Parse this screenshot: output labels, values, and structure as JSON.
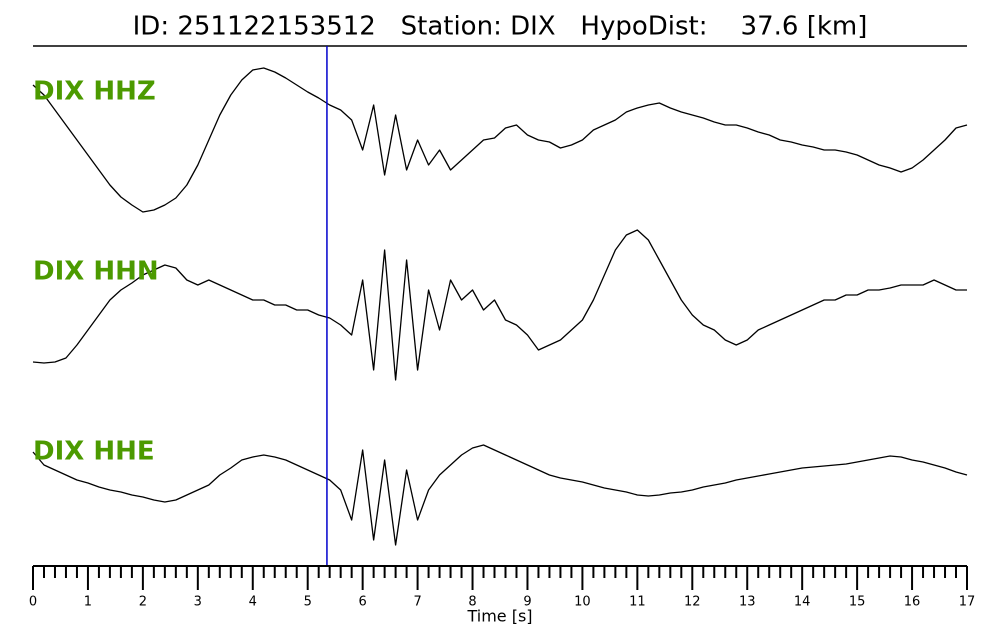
{
  "chart_data": {
    "type": "seismogram",
    "title": "ID: 251122153512   Station: DIX   HypoDist:    37.6 [km]",
    "xlabel": "Time [s]",
    "xlim": [
      0,
      17
    ],
    "xticks": [
      0,
      1,
      2,
      3,
      4,
      5,
      6,
      7,
      8,
      9,
      10,
      11,
      12,
      13,
      14,
      15,
      16,
      17
    ],
    "xminorticks": [
      0.2,
      0.4,
      0.6,
      0.8,
      1.2,
      1.4,
      1.6,
      1.8,
      2.2,
      2.4,
      2.6,
      2.8,
      3.2,
      3.4,
      3.6,
      3.8,
      4.2,
      4.4,
      4.6,
      4.8,
      5.2,
      5.4,
      5.6,
      5.8,
      6.2,
      6.4,
      6.6,
      6.8,
      7.2,
      7.4,
      7.6,
      7.8,
      8.2,
      8.4,
      8.6,
      8.8,
      9.2,
      9.4,
      9.6,
      9.8,
      10.2,
      10.4,
      10.6,
      10.8,
      11.2,
      11.4,
      11.6,
      11.8,
      12.2,
      12.4,
      12.6,
      12.8,
      13.2,
      13.4,
      13.6,
      13.8,
      14.2,
      14.4,
      14.6,
      14.8,
      15.2,
      15.4,
      15.6,
      15.8,
      16.2,
      16.4,
      16.6,
      16.8
    ],
    "ylim": [
      -90,
      90
    ],
    "pick": 5.35,
    "pick_color": "#0000cc",
    "label_color": "#4c9a00",
    "x": [
      0,
      0.2,
      0.4,
      0.6,
      0.8,
      1,
      1.2,
      1.4,
      1.6,
      1.8,
      2,
      2.2,
      2.4,
      2.6,
      2.8,
      3,
      3.2,
      3.4,
      3.6,
      3.8,
      4,
      4.2,
      4.4,
      4.6,
      4.8,
      5,
      5.2,
      5.4,
      5.6,
      5.8,
      6,
      6.2,
      6.4,
      6.6,
      6.8,
      7,
      7.2,
      7.4,
      7.6,
      7.8,
      8,
      8.2,
      8.4,
      8.6,
      8.8,
      9,
      9.2,
      9.4,
      9.6,
      9.8,
      10,
      10.2,
      10.4,
      10.6,
      10.8,
      11,
      11.2,
      11.4,
      11.6,
      11.8,
      12,
      12.2,
      12.4,
      12.6,
      12.8,
      13,
      13.2,
      13.4,
      13.6,
      13.8,
      14,
      14.2,
      14.4,
      14.6,
      14.8,
      15,
      15.2,
      15.4,
      15.6,
      15.8,
      16,
      16.2,
      16.4,
      16.6,
      16.8,
      17
    ],
    "series": [
      {
        "name": "DIX HHZ",
        "color": "#000000",
        "values": [
          55,
          45,
          30,
          15,
          0,
          -15,
          -30,
          -45,
          -57,
          -65,
          -72,
          -70,
          -65,
          -58,
          -45,
          -25,
          0,
          25,
          45,
          60,
          70,
          72,
          68,
          62,
          55,
          48,
          42,
          35,
          30,
          20,
          -10,
          35,
          -35,
          25,
          -30,
          0,
          -25,
          -10,
          -30,
          -20,
          -10,
          0,
          2,
          12,
          15,
          5,
          0,
          -2,
          -8,
          -5,
          0,
          10,
          15,
          20,
          28,
          32,
          35,
          37,
          32,
          28,
          25,
          22,
          18,
          15,
          15,
          12,
          8,
          5,
          0,
          -2,
          -5,
          -7,
          -10,
          -10,
          -12,
          -15,
          -20,
          -25,
          -28,
          -32,
          -28,
          -20,
          -10,
          0,
          12,
          15
        ]
      },
      {
        "name": "DIX HHN",
        "color": "#000000",
        "values": [
          -42,
          -43,
          -42,
          -38,
          -25,
          -10,
          5,
          20,
          30,
          37,
          45,
          50,
          55,
          52,
          40,
          35,
          40,
          35,
          30,
          25,
          20,
          20,
          15,
          15,
          10,
          10,
          5,
          2,
          -5,
          -15,
          40,
          -50,
          70,
          -60,
          60,
          -50,
          30,
          -10,
          40,
          20,
          30,
          10,
          20,
          0,
          -5,
          -15,
          -30,
          -25,
          -20,
          -10,
          0,
          20,
          45,
          70,
          85,
          90,
          80,
          60,
          40,
          20,
          5,
          -5,
          -10,
          -20,
          -25,
          -20,
          -10,
          -5,
          0,
          5,
          10,
          15,
          20,
          20,
          25,
          25,
          30,
          30,
          32,
          35,
          35,
          35,
          40,
          35,
          30,
          30
        ]
      },
      {
        "name": "DIX HHE",
        "color": "#000000",
        "values": [
          48,
          35,
          30,
          25,
          20,
          17,
          13,
          10,
          8,
          5,
          3,
          0,
          -2,
          0,
          5,
          10,
          15,
          25,
          32,
          40,
          43,
          45,
          43,
          40,
          35,
          30,
          25,
          20,
          10,
          -20,
          50,
          -40,
          40,
          -45,
          30,
          -20,
          10,
          25,
          35,
          45,
          52,
          55,
          50,
          45,
          40,
          35,
          30,
          25,
          22,
          20,
          18,
          15,
          12,
          10,
          8,
          5,
          4,
          5,
          7,
          8,
          10,
          13,
          15,
          17,
          20,
          22,
          24,
          26,
          28,
          30,
          32,
          33,
          34,
          35,
          36,
          38,
          40,
          42,
          44,
          43,
          40,
          38,
          35,
          32,
          28,
          25
        ]
      }
    ]
  }
}
